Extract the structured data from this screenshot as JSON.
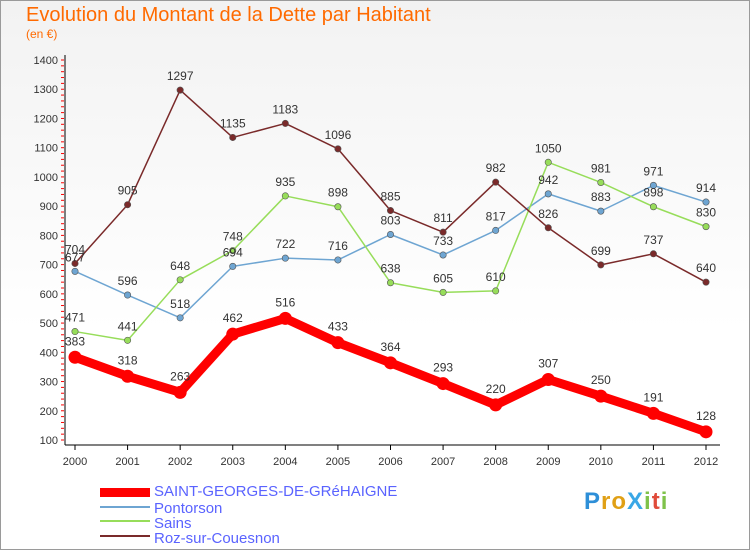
{
  "header": {
    "title": "Evolution du Montant de la Dette par Habitant",
    "subtitle": "(en €)"
  },
  "logo": {
    "text": "ProXiti",
    "letter_colors": [
      "#2e8fd8",
      "#e0a016",
      "#e0a016",
      "#39a7e6",
      "#7fc24a",
      "#e04b3a",
      "#7fc24a"
    ]
  },
  "colors": {
    "title": "#ff6a00",
    "legend_text": "#5a63ff",
    "axis": "#000000",
    "grid_ticks": "#ff0000"
  },
  "chart_data": {
    "type": "line",
    "x": [
      2000,
      2001,
      2002,
      2003,
      2004,
      2005,
      2006,
      2007,
      2008,
      2009,
      2010,
      2011,
      2012
    ],
    "ylim": [
      100,
      1400
    ],
    "yticks": [
      100,
      200,
      300,
      400,
      500,
      600,
      700,
      800,
      900,
      1000,
      1100,
      1200,
      1300,
      1400
    ],
    "grid": false,
    "legend_position": "bottom-left",
    "series": [
      {
        "name": "SAINT-GEORGES-DE-GRéHAIGNE",
        "color": "#ff0000",
        "highlight": true,
        "values": [
          383,
          318,
          263,
          462,
          516,
          433,
          364,
          293,
          220,
          307,
          250,
          191,
          128
        ],
        "labels": [
          "383",
          "318",
          "263",
          "462",
          "516",
          "433",
          "364",
          "293",
          "220",
          "307",
          "250",
          "191",
          "128"
        ]
      },
      {
        "name": "Pontorson",
        "color": "#6ea5d2",
        "highlight": false,
        "values": [
          677,
          596,
          518,
          694,
          722,
          716,
          803,
          733,
          817,
          942,
          883,
          971,
          914
        ],
        "labels": [
          "677",
          "596",
          "518",
          "694",
          "722",
          "716",
          "803",
          "733",
          "817",
          "942",
          "883",
          "971",
          "914"
        ]
      },
      {
        "name": "Sains",
        "color": "#97dd5a",
        "highlight": false,
        "values": [
          471,
          441,
          648,
          748,
          935,
          898,
          638,
          605,
          610,
          1050,
          981,
          898,
          830
        ],
        "labels": [
          "471",
          "441",
          "648",
          "748",
          "935",
          "898",
          "638",
          "605",
          "610",
          "1050",
          "981",
          "898",
          "830"
        ]
      },
      {
        "name": "Roz-sur-Couesnon",
        "color": "#7a2a2a",
        "highlight": false,
        "values": [
          704,
          905,
          1297,
          1135,
          1183,
          1096,
          885,
          811,
          982,
          826,
          699,
          737,
          640
        ],
        "labels": [
          "704",
          "905",
          "1297",
          "1135",
          "1183",
          "1096",
          "885",
          "811",
          "982",
          "826",
          "699",
          "737",
          "640"
        ]
      }
    ]
  }
}
